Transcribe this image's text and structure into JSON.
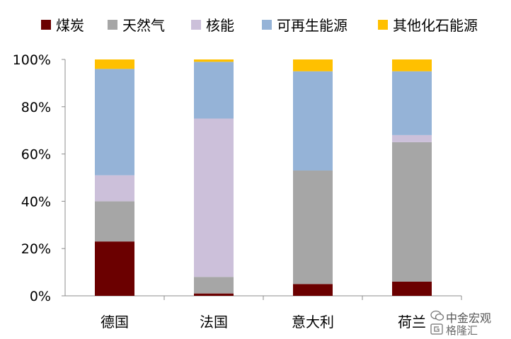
{
  "chart_data": {
    "type": "bar",
    "stacked": true,
    "categories": [
      "德国",
      "法国",
      "意大利",
      "荷兰"
    ],
    "series": [
      {
        "name": "煤炭",
        "color": "#6b0000",
        "values": [
          23,
          1,
          5,
          6
        ]
      },
      {
        "name": "天然气",
        "color": "#a6a6a6",
        "values": [
          17,
          7,
          48,
          59
        ]
      },
      {
        "name": "核能",
        "color": "#ccc0da",
        "values": [
          11,
          67,
          0,
          3
        ]
      },
      {
        "name": "可再生能源",
        "color": "#95b3d7",
        "values": [
          45,
          24,
          42,
          27
        ]
      },
      {
        "name": "其他化石能源",
        "color": "#ffc000",
        "values": [
          4,
          1,
          5,
          5
        ]
      }
    ],
    "ylim": [
      0,
      100
    ],
    "yticks": [
      "0%",
      "20%",
      "40%",
      "60%",
      "80%",
      "100%"
    ],
    "grid": false,
    "legend_position": "top"
  },
  "watermark": {
    "line1": "中金宏观",
    "line2": "格隆汇"
  }
}
